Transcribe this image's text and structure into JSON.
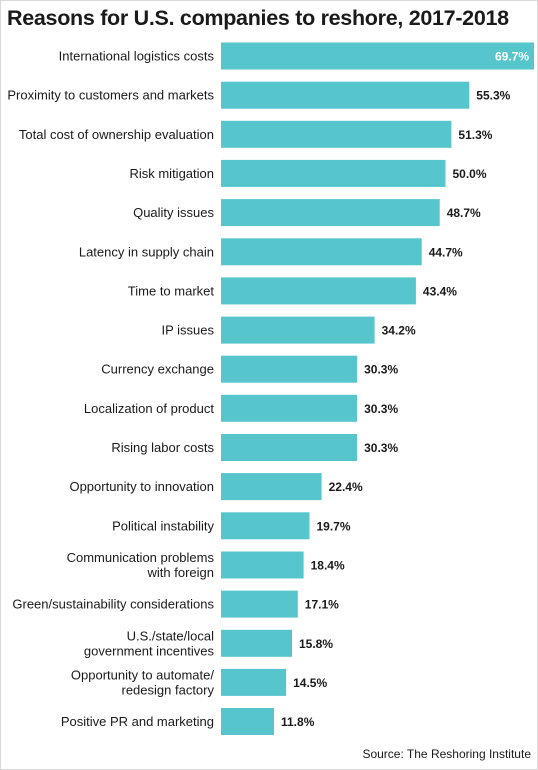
{
  "chart_data": {
    "type": "bar",
    "orientation": "horizontal",
    "title": "Reasons for U.S. companies to reshore, 2017-2018",
    "source": "Source: The Reshoring Institute",
    "value_suffix": "%",
    "bar_color": "#56c6cc",
    "label_color_inside": "#ffffff",
    "label_color_outside": "#1a1a1a",
    "xlim": [
      0,
      69.7
    ],
    "categories": [
      [
        "International logistics costs"
      ],
      [
        "Proximity to customers and markets"
      ],
      [
        "Total cost of ownership evaluation"
      ],
      [
        "Risk mitigation"
      ],
      [
        "Quality issues"
      ],
      [
        "Latency in supply chain"
      ],
      [
        "Time to market"
      ],
      [
        "IP issues"
      ],
      [
        "Currency exchange"
      ],
      [
        "Localization of product"
      ],
      [
        "Rising labor costs"
      ],
      [
        "Opportunity to innovation"
      ],
      [
        "Political instability"
      ],
      [
        "Communication problems",
        "with foreign"
      ],
      [
        "Green/sustainability considerations"
      ],
      [
        "U.S./state/local",
        "government incentives"
      ],
      [
        "Opportunity to automate/",
        "redesign factory"
      ],
      [
        "Positive PR and marketing"
      ]
    ],
    "values": [
      69.7,
      55.3,
      51.3,
      50.0,
      48.7,
      44.7,
      43.4,
      34.2,
      30.3,
      30.3,
      30.3,
      22.4,
      19.7,
      18.4,
      17.1,
      15.8,
      14.5,
      11.8
    ],
    "value_labels": [
      "69.7%",
      "55.3%",
      "51.3%",
      "50.0%",
      "48.7%",
      "44.7%",
      "43.4%",
      "34.2%",
      "30.3%",
      "30.3%",
      "30.3%",
      "22.4%",
      "19.7%",
      "18.4%",
      "17.1%",
      "15.8%",
      "14.5%",
      "11.8%"
    ]
  }
}
